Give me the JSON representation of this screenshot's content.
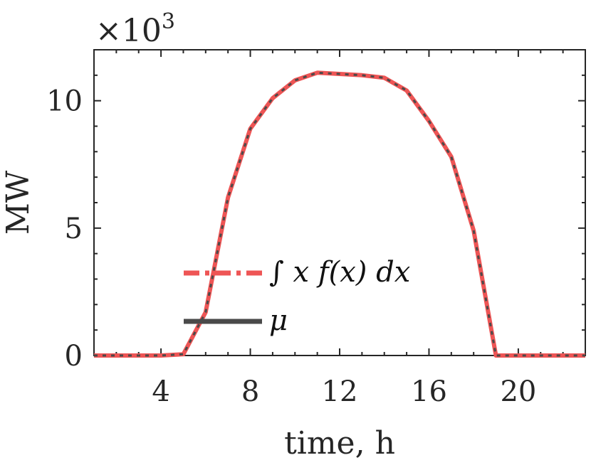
{
  "chart_data": {
    "type": "line",
    "xlabel": "time, h",
    "ylabel": "MW",
    "y_multiplier": "×10",
    "y_multiplier_exp": "3",
    "xlim": [
      1,
      23
    ],
    "ylim": [
      0,
      12
    ],
    "xticks": [
      4,
      8,
      12,
      16,
      20
    ],
    "yticks": [
      0,
      5,
      10
    ],
    "grid": false,
    "legend_position": "center-left",
    "x": [
      1,
      2,
      3,
      4,
      5,
      6,
      7,
      8,
      9,
      10,
      11,
      12,
      13,
      14,
      15,
      16,
      17,
      18,
      19,
      20,
      21,
      22,
      23
    ],
    "series": [
      {
        "name": "∫ x f(x) dx",
        "style": "dash-dot",
        "color": "#ee5555",
        "values": [
          0,
          0,
          0,
          0,
          0.05,
          1.7,
          6.2,
          8.9,
          10.1,
          10.8,
          11.1,
          11.05,
          11.0,
          10.9,
          10.4,
          9.2,
          7.8,
          4.9,
          0,
          0,
          0,
          0,
          0
        ]
      },
      {
        "name": "μ",
        "style": "solid",
        "color": "#4a4a4a",
        "values": [
          0,
          0,
          0,
          0,
          0.05,
          1.7,
          6.2,
          8.9,
          10.1,
          10.8,
          11.1,
          11.05,
          11.0,
          10.9,
          10.4,
          9.2,
          7.8,
          4.9,
          0,
          0,
          0,
          0,
          0
        ]
      }
    ]
  }
}
